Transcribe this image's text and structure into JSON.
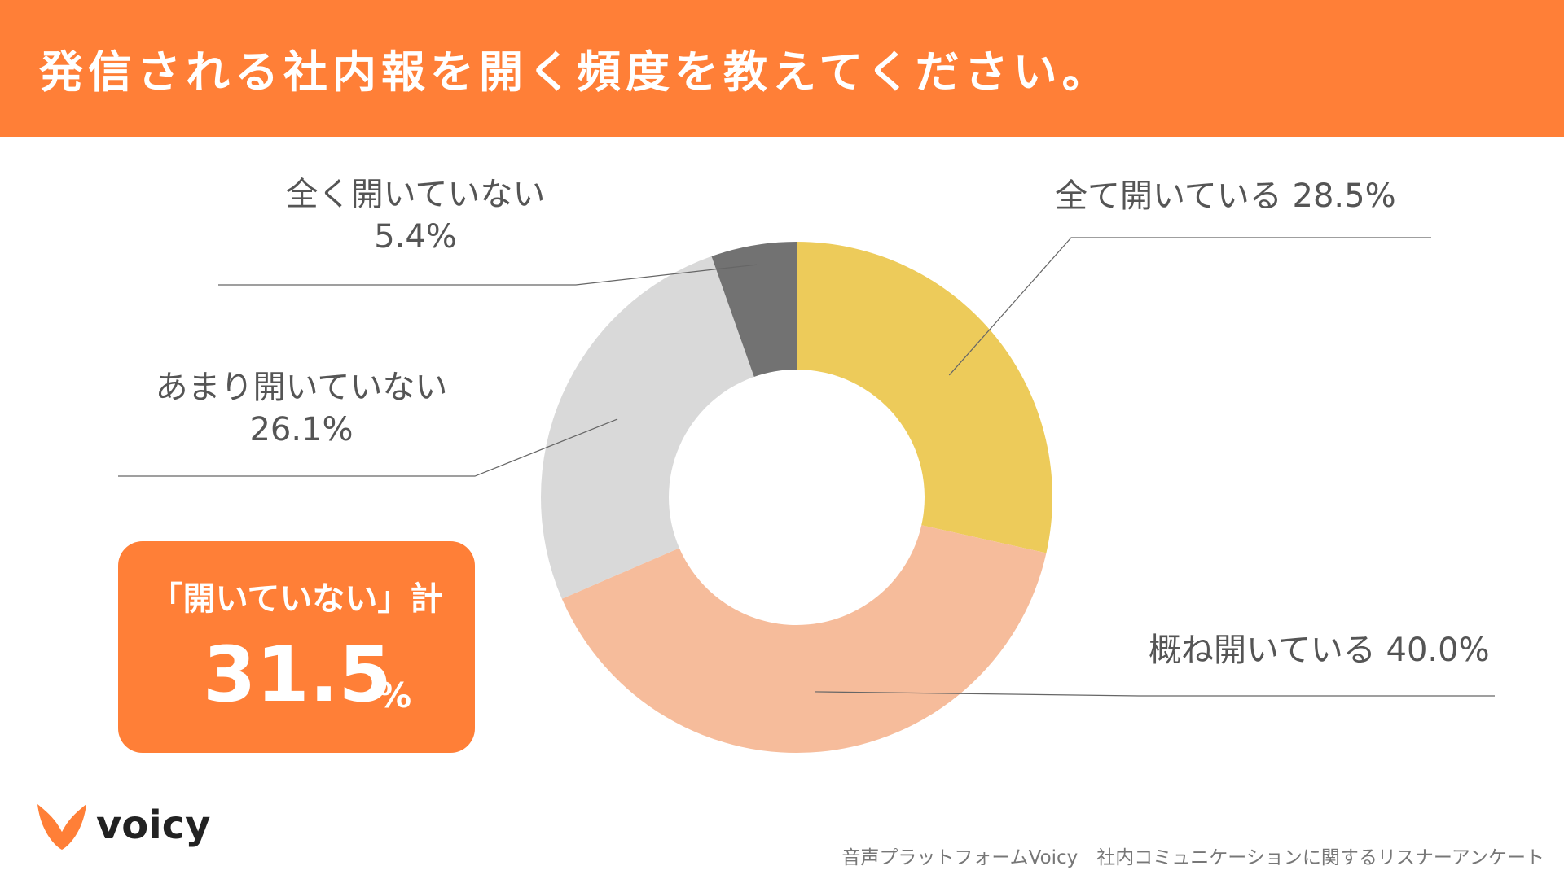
{
  "header": {
    "title": "発信される社内報を開く頻度を教えてください。"
  },
  "chart_data": {
    "type": "pie",
    "variant": "donut",
    "title": "発信される社内報を開く頻度を教えてください。",
    "slices": [
      {
        "label": "全て開いている",
        "value": 28.5,
        "value_label": "28.5%",
        "color": "#edcb5a"
      },
      {
        "label": "概ね開いている",
        "value": 40.0,
        "value_label": "40.0%",
        "color": "#f6bc9b"
      },
      {
        "label": "あまり開いていない",
        "value": 26.1,
        "value_label": "26.1%",
        "color": "#d9d9d9"
      },
      {
        "label": "全く開いていない",
        "value": 5.4,
        "value_label": "5.4%",
        "color": "#727272"
      }
    ],
    "summary": {
      "label": "「開いていない」計",
      "value": "31.5",
      "unit": "%"
    }
  },
  "labels": {
    "all_open": "全て開いている 28.5%",
    "mostly_open": "概ね開いている 40.0%",
    "rarely_open_name": "あまり開いていない",
    "rarely_open_value": "26.1%",
    "never_open_name": "全く開いていない",
    "never_open_value": "5.4%"
  },
  "logo": {
    "text": "voicy",
    "icon": "voicy-logo-icon",
    "color": "#ff7f37"
  },
  "footer": {
    "source": "音声プラットフォームVoicy　社内コミュニケーションに関するリスナーアンケート"
  }
}
